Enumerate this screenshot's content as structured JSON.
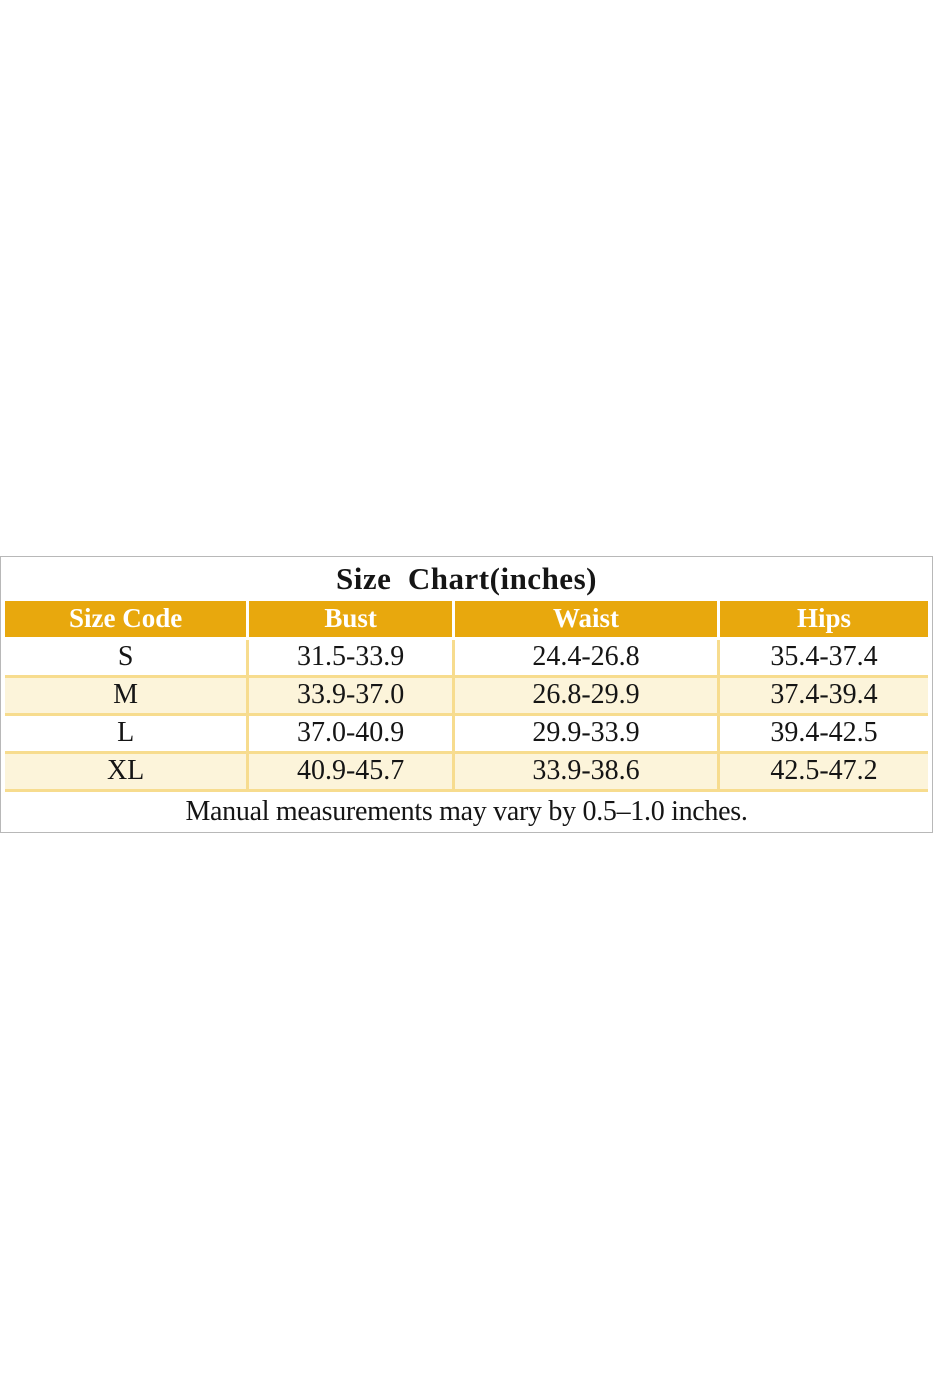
{
  "chart_data": {
    "type": "table",
    "title": "Size  Chart(inches)",
    "columns": [
      "Size Code",
      "Bust",
      "Waist",
      "Hips"
    ],
    "rows": [
      [
        "S",
        "31.5-33.9",
        "24.4-26.8",
        "35.4-37.4"
      ],
      [
        "M",
        "33.9-37.0",
        "26.8-29.9",
        "37.4-39.4"
      ],
      [
        "L",
        "37.0-40.9",
        "29.9-33.9",
        "39.4-42.5"
      ],
      [
        "XL",
        "40.9-45.7",
        "33.9-38.6",
        "42.5-47.2"
      ]
    ],
    "note": "Manual measurements may vary by 0.5–1.0 inches.",
    "layout_hints": {
      "header_position": "top",
      "grid": "on",
      "alternating_rows": [
        "white",
        "cream"
      ]
    }
  },
  "colors": {
    "header_bg": "#E8A80D",
    "alt_row_bg": "#FCF4DA",
    "grid_line": "#F7DC8E",
    "outer_border": "#B8B8B8",
    "header_text": "#FFFFFF",
    "body_text": "#151515"
  }
}
